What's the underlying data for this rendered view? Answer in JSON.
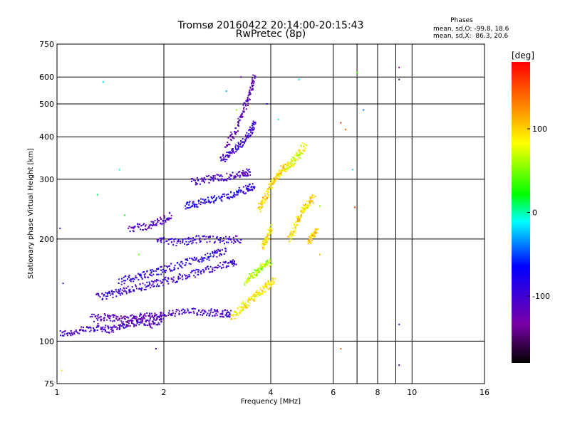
{
  "chart_data": {
    "type": "scatter",
    "title": "Tromsø 20160422 20:14:00-20:15:43",
    "subtitle": "RwPretec (8p)",
    "xlabel": "Frequency [MHz]",
    "ylabel": "Stationary phase Virtual Height [km]",
    "xscale": "log",
    "yscale": "log",
    "xlim": [
      1,
      16
    ],
    "ylim": [
      75,
      750
    ],
    "xticks": [
      1,
      2,
      4,
      6,
      8,
      10,
      16
    ],
    "yticks": [
      75,
      100,
      200,
      300,
      400,
      500,
      600,
      750
    ],
    "grid": true,
    "stats": {
      "heading": "Phases",
      "o_mode": "mean, sd,O: -99.8, 18.6",
      "x_mode": "mean, sd,X:  86.3, 20.6"
    },
    "colorbar": {
      "label": "[deg]",
      "range": [
        -180,
        180
      ],
      "ticks": [
        -100,
        0,
        100
      ],
      "stops": [
        "#000000",
        "#7a00a8",
        "#0000ff",
        "#00ffff",
        "#00ff00",
        "#ffff00",
        "#ff8000",
        "#ff0000"
      ]
    },
    "traces": [
      {
        "x": [
          1.02,
          1.15,
          1.3,
          1.42,
          1.55,
          1.7,
          1.85,
          2.0
        ],
        "y": [
          105,
          107,
          110,
          108,
          112,
          114,
          112,
          117
        ],
        "phase": -110
      },
      {
        "x": [
          1.25,
          1.4,
          1.55,
          1.7,
          1.85,
          2.0
        ],
        "y": [
          117,
          118,
          116,
          118,
          118,
          119
        ],
        "phase": -120
      },
      {
        "x": [
          2.0,
          2.3,
          2.6,
          2.9,
          3.1
        ],
        "y": [
          120,
          122,
          122,
          121,
          120
        ],
        "phase": -105
      },
      {
        "x": [
          1.3,
          1.45,
          1.6,
          1.8,
          2.0,
          2.3,
          2.6,
          3.0,
          3.2
        ],
        "y": [
          135,
          138,
          142,
          146,
          150,
          155,
          162,
          168,
          172
        ],
        "phase": -100
      },
      {
        "x": [
          1.5,
          1.7,
          1.9,
          2.1,
          2.4,
          2.7,
          3.0
        ],
        "y": [
          150,
          155,
          160,
          165,
          172,
          178,
          185
        ],
        "phase": -95
      },
      {
        "x": [
          1.9,
          2.2,
          2.5,
          2.9,
          3.3
        ],
        "y": [
          198,
          195,
          200,
          198,
          200
        ],
        "phase": -100
      },
      {
        "x": [
          1.6,
          1.8,
          1.95,
          2.1
        ],
        "y": [
          215,
          218,
          225,
          235
        ],
        "phase": -115
      },
      {
        "x": [
          2.3,
          2.5,
          2.8,
          3.1,
          3.4,
          3.6
        ],
        "y": [
          250,
          255,
          262,
          270,
          280,
          285
        ],
        "phase": -90
      },
      {
        "x": [
          2.4,
          2.7,
          3.0,
          3.3,
          3.5
        ],
        "y": [
          295,
          300,
          305,
          310,
          315
        ],
        "phase": -110
      },
      {
        "x": [
          3.0,
          3.2,
          3.35,
          3.5,
          3.6
        ],
        "y": [
          380,
          420,
          480,
          540,
          600
        ],
        "phase": -125
      },
      {
        "x": [
          2.9,
          3.1,
          3.3,
          3.5,
          3.6
        ],
        "y": [
          340,
          360,
          380,
          410,
          440
        ],
        "phase": -100
      },
      {
        "x": [
          3.1,
          3.3,
          3.5,
          3.7,
          3.9,
          4.1
        ],
        "y": [
          118,
          125,
          132,
          138,
          145,
          152
        ],
        "phase": 85
      },
      {
        "x": [
          3.4,
          3.6,
          3.8,
          4.0
        ],
        "y": [
          150,
          158,
          166,
          172
        ],
        "phase": 60
      },
      {
        "x": [
          3.8,
          3.9,
          4.0
        ],
        "y": [
          190,
          200,
          215
        ],
        "phase": 90
      },
      {
        "x": [
          3.7,
          3.85,
          4.0,
          4.15,
          4.3,
          4.5
        ],
        "y": [
          245,
          262,
          285,
          305,
          320,
          330
        ],
        "phase": 95
      },
      {
        "x": [
          4.4,
          4.6,
          4.8,
          5.0
        ],
        "y": [
          320,
          335,
          355,
          380
        ],
        "phase": 75
      },
      {
        "x": [
          4.5,
          4.7,
          4.9,
          5.1,
          5.3
        ],
        "y": [
          200,
          220,
          240,
          255,
          265
        ],
        "phase": 95
      },
      {
        "x": [
          5.1,
          5.25,
          5.4
        ],
        "y": [
          195,
          205,
          215
        ],
        "phase": 100
      }
    ],
    "points": [
      {
        "x": 1.35,
        "y": 580,
        "phase": -20
      },
      {
        "x": 1.5,
        "y": 320,
        "phase": -10
      },
      {
        "x": 1.3,
        "y": 270,
        "phase": 10
      },
      {
        "x": 1.55,
        "y": 235,
        "phase": 20
      },
      {
        "x": 1.02,
        "y": 215,
        "phase": -100
      },
      {
        "x": 1.7,
        "y": 180,
        "phase": 40
      },
      {
        "x": 1.04,
        "y": 148,
        "phase": -105
      },
      {
        "x": 1.9,
        "y": 95,
        "phase": -110
      },
      {
        "x": 1.03,
        "y": 82,
        "phase": 90
      },
      {
        "x": 3.3,
        "y": 600,
        "phase": -115
      },
      {
        "x": 3.0,
        "y": 545,
        "phase": -30
      },
      {
        "x": 3.2,
        "y": 480,
        "phase": 50
      },
      {
        "x": 3.9,
        "y": 500,
        "phase": -90
      },
      {
        "x": 4.2,
        "y": 450,
        "phase": 5
      },
      {
        "x": 4.8,
        "y": 590,
        "phase": -20
      },
      {
        "x": 5.5,
        "y": 250,
        "phase": 60
      },
      {
        "x": 5.5,
        "y": 180,
        "phase": 110
      },
      {
        "x": 6.3,
        "y": 440,
        "phase": 160
      },
      {
        "x": 6.5,
        "y": 420,
        "phase": 140
      },
      {
        "x": 6.8,
        "y": 320,
        "phase": -20
      },
      {
        "x": 6.9,
        "y": 248,
        "phase": 150
      },
      {
        "x": 7.0,
        "y": 618,
        "phase": 40
      },
      {
        "x": 7.3,
        "y": 480,
        "phase": -40
      },
      {
        "x": 6.3,
        "y": 95,
        "phase": 140
      },
      {
        "x": 9.2,
        "y": 640,
        "phase": -130
      },
      {
        "x": 9.2,
        "y": 590,
        "phase": -150
      },
      {
        "x": 9.2,
        "y": 112,
        "phase": -120
      },
      {
        "x": 9.2,
        "y": 85,
        "phase": -150
      }
    ]
  }
}
